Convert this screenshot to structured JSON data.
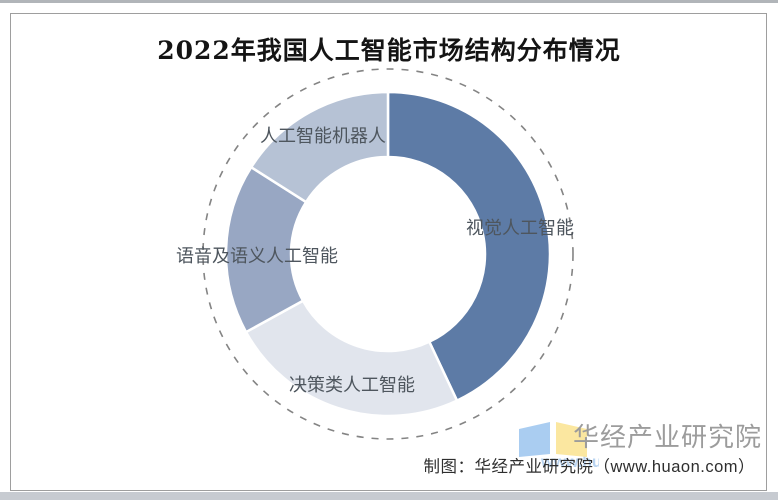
{
  "title": "2022年我国人工智能市场结构分布情况",
  "chart_data": {
    "type": "pie",
    "subtype": "donut",
    "title": "2022年我国人工智能市场结构分布情况",
    "unit": "percent",
    "start_angle_deg": 0,
    "direction": "clockwise",
    "inner_radius_ratio": 0.6,
    "legend_position": "none",
    "grid": false,
    "segments": [
      {
        "label": "视觉人工智能",
        "value": 43,
        "color": "#5d7ba6"
      },
      {
        "label": "决策类人工智能",
        "value": 24,
        "color": "#e1e5ed"
      },
      {
        "label": "语音及语义人工智能",
        "value": 17,
        "color": "#98a7c3"
      },
      {
        "label": "人工智能机器人",
        "value": 16,
        "color": "#b6c2d5"
      }
    ]
  },
  "decoration": {
    "dashed_circle_color": "#848484",
    "frame_border_color": "#9e9e9e",
    "slice_gap_color": "#ffffff"
  },
  "footer": {
    "credit": "制图：华经产业研究院（www.huaon.com）",
    "logo_text": "华经产业研究院",
    "watermark_fragment": "www.huaon.com",
    "logo_blue": "#aacdf1",
    "logo_yellow": "#fbe7a0"
  }
}
